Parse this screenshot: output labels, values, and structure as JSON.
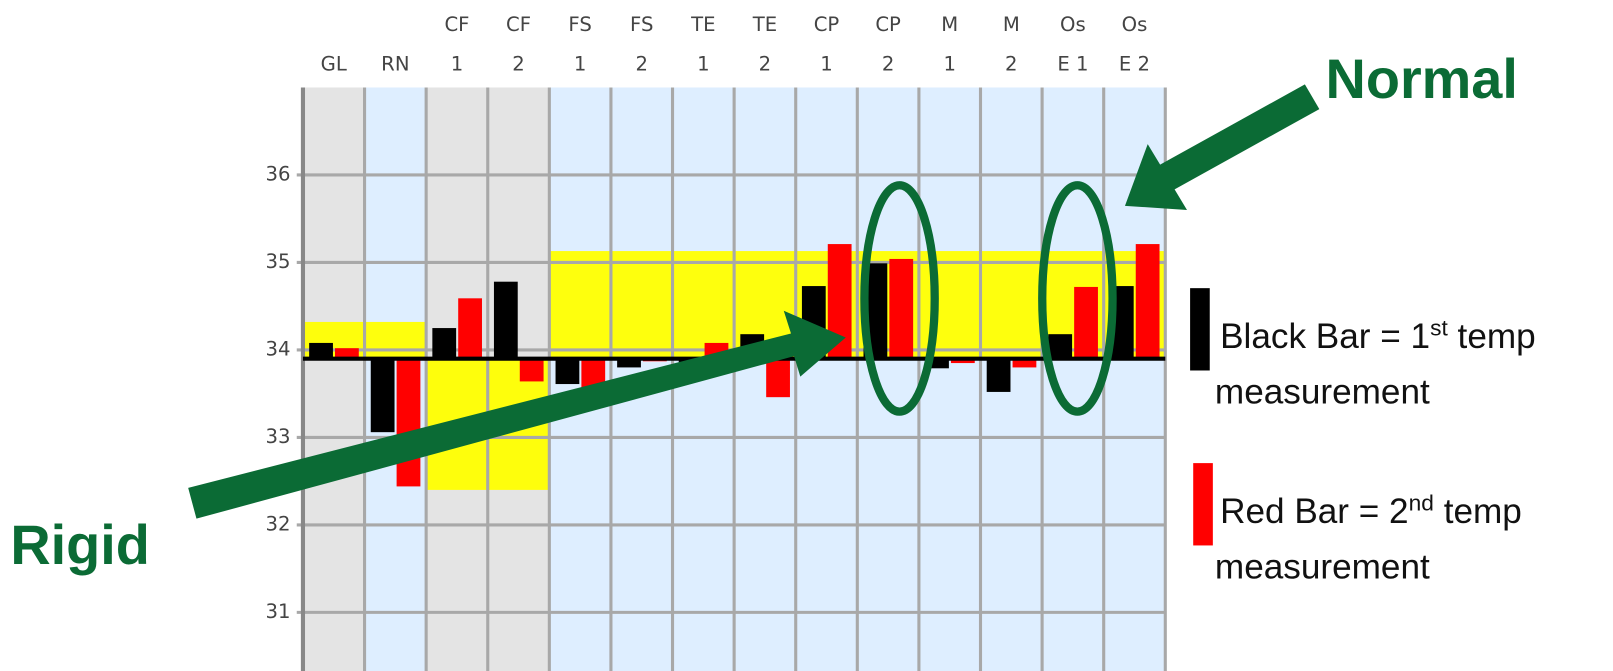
{
  "chart_data": {
    "type": "bar",
    "categories": [
      [
        "GL"
      ],
      [
        "RN"
      ],
      [
        "CF",
        "1"
      ],
      [
        "CF",
        "2"
      ],
      [
        "FS",
        "1"
      ],
      [
        "FS",
        "2"
      ],
      [
        "TE",
        "1"
      ],
      [
        "TE",
        "2"
      ],
      [
        "CP",
        "1"
      ],
      [
        "CP",
        "2"
      ],
      [
        "M",
        "1"
      ],
      [
        "M",
        "2"
      ],
      [
        "Os",
        "E 1"
      ],
      [
        "Os",
        "E 2"
      ]
    ],
    "column_colors": [
      "#e4e4e4",
      "#deeeff",
      "#e4e4e4",
      "#e4e4e4",
      "#deeeff",
      "#deeeff",
      "#deeeff",
      "#deeeff",
      "#deeeff",
      "#deeeff",
      "#deeeff",
      "#deeeff",
      "#deeeff",
      "#deeeff"
    ],
    "baseline": 33.9,
    "series": [
      {
        "color": "#000000",
        "values": [
          34.08,
          33.06,
          34.25,
          34.78,
          33.61,
          33.8,
          33.82,
          34.18,
          34.73,
          34.99,
          33.79,
          33.52,
          34.18,
          34.73
        ]
      },
      {
        "color": "#ff0000",
        "values": [
          34.02,
          32.44,
          34.59,
          33.64,
          33.55,
          33.87,
          34.08,
          33.46,
          35.21,
          35.04,
          33.85,
          33.8,
          34.72,
          35.21
        ]
      }
    ],
    "ranges": [
      {
        "from": 0,
        "to": 1,
        "low": 33.9,
        "high": 34.32
      },
      {
        "from": 2,
        "to": 3,
        "low": 32.4,
        "high": 33.9
      },
      {
        "from": 4,
        "to": 13,
        "low": 33.9,
        "high": 35.13
      }
    ],
    "range_color": "#ffff00",
    "ylim": [
      30.33,
      37
    ],
    "yticks": [
      31,
      32,
      33,
      34,
      35,
      36
    ],
    "grid": true,
    "legend": [
      {
        "color": "#000000",
        "text": [
          "Black Bar = 1",
          "st",
          " temp"
        ],
        "text2": "measurement"
      },
      {
        "color": "#ff0000",
        "text": [
          " Red Bar = 2",
          "nd",
          " temp"
        ],
        "text2": "measurement"
      }
    ],
    "annotations": {
      "normal": "Normal",
      "rigid": "Rigid"
    }
  }
}
